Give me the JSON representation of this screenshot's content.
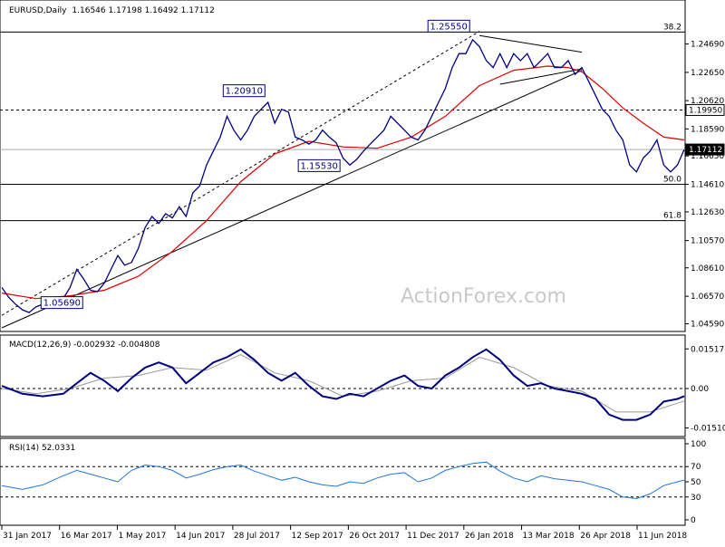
{
  "chart_data": {
    "type": "line",
    "watermark": "ActionForex.com",
    "price_panel": {
      "symbol": "EURUSD,Daily",
      "ohlc_text": "1.16546 1.17198 1.16492 1.17112",
      "ylim": [
        1.043,
        1.272
      ],
      "y_ticks": [
        "1.24690",
        "1.22650",
        "1.20620",
        "1.18590",
        "1.16650",
        "1.14610",
        "1.12630",
        "1.10570",
        "1.08610",
        "1.06570",
        "1.04590"
      ],
      "horizontal_lines": [
        {
          "value": 1.2555,
          "style": "solid",
          "label": "38.2"
        },
        {
          "value": 1.1995,
          "style": "dashed",
          "label": ""
        },
        {
          "value": 1.1711,
          "style": "solid-grey",
          "label": ""
        },
        {
          "value": 1.1461,
          "style": "solid",
          "label": "50.0"
        },
        {
          "value": 1.12,
          "style": "solid",
          "label": "61.8"
        }
      ],
      "level_boxes": [
        "1.19950",
        "1.17112"
      ],
      "annotations": [
        {
          "text": "1.25550",
          "x": 0.655,
          "y": 1.2555
        },
        {
          "text": "1.20910",
          "x": 0.355,
          "y": 1.2091
        },
        {
          "text": "1.15530",
          "x": 0.465,
          "y": 1.1553
        },
        {
          "text": "1.05690",
          "x": 0.088,
          "y": 1.0569
        }
      ],
      "close_series": [
        [
          0.0,
          1.072
        ],
        [
          0.01,
          1.065
        ],
        [
          0.02,
          1.06
        ],
        [
          0.03,
          1.056
        ],
        [
          0.04,
          1.054
        ],
        [
          0.05,
          1.058
        ],
        [
          0.06,
          1.06
        ],
        [
          0.07,
          1.062
        ],
        [
          0.08,
          1.058
        ],
        [
          0.09,
          1.064
        ],
        [
          0.1,
          1.072
        ],
        [
          0.11,
          1.085
        ],
        [
          0.12,
          1.078
        ],
        [
          0.13,
          1.07
        ],
        [
          0.14,
          1.069
        ],
        [
          0.15,
          1.075
        ],
        [
          0.16,
          1.085
        ],
        [
          0.17,
          1.095
        ],
        [
          0.18,
          1.088
        ],
        [
          0.19,
          1.09
        ],
        [
          0.2,
          1.1
        ],
        [
          0.21,
          1.115
        ],
        [
          0.22,
          1.123
        ],
        [
          0.23,
          1.118
        ],
        [
          0.24,
          1.125
        ],
        [
          0.25,
          1.122
        ],
        [
          0.26,
          1.13
        ],
        [
          0.27,
          1.123
        ],
        [
          0.28,
          1.14
        ],
        [
          0.29,
          1.145
        ],
        [
          0.3,
          1.16
        ],
        [
          0.31,
          1.17
        ],
        [
          0.32,
          1.18
        ],
        [
          0.33,
          1.195
        ],
        [
          0.34,
          1.185
        ],
        [
          0.35,
          1.178
        ],
        [
          0.36,
          1.185
        ],
        [
          0.37,
          1.195
        ],
        [
          0.38,
          1.2
        ],
        [
          0.39,
          1.205
        ],
        [
          0.4,
          1.19
        ],
        [
          0.41,
          1.2
        ],
        [
          0.42,
          1.198
        ],
        [
          0.43,
          1.18
        ],
        [
          0.44,
          1.178
        ],
        [
          0.45,
          1.175
        ],
        [
          0.46,
          1.178
        ],
        [
          0.47,
          1.185
        ],
        [
          0.48,
          1.18
        ],
        [
          0.49,
          1.176
        ],
        [
          0.5,
          1.165
        ],
        [
          0.51,
          1.16
        ],
        [
          0.52,
          1.164
        ],
        [
          0.53,
          1.17
        ],
        [
          0.54,
          1.175
        ],
        [
          0.55,
          1.18
        ],
        [
          0.56,
          1.185
        ],
        [
          0.57,
          1.195
        ],
        [
          0.58,
          1.19
        ],
        [
          0.59,
          1.185
        ],
        [
          0.6,
          1.18
        ],
        [
          0.61,
          1.178
        ],
        [
          0.62,
          1.185
        ],
        [
          0.63,
          1.195
        ],
        [
          0.64,
          1.205
        ],
        [
          0.65,
          1.215
        ],
        [
          0.66,
          1.23
        ],
        [
          0.67,
          1.24
        ],
        [
          0.68,
          1.24
        ],
        [
          0.69,
          1.25
        ],
        [
          0.7,
          1.245
        ],
        [
          0.71,
          1.235
        ],
        [
          0.72,
          1.23
        ],
        [
          0.73,
          1.24
        ],
        [
          0.74,
          1.23
        ],
        [
          0.75,
          1.24
        ],
        [
          0.76,
          1.235
        ],
        [
          0.77,
          1.24
        ],
        [
          0.78,
          1.23
        ],
        [
          0.79,
          1.235
        ],
        [
          0.8,
          1.24
        ],
        [
          0.81,
          1.23
        ],
        [
          0.82,
          1.23
        ],
        [
          0.83,
          1.235
        ],
        [
          0.84,
          1.225
        ],
        [
          0.85,
          1.23
        ],
        [
          0.86,
          1.22
        ],
        [
          0.87,
          1.21
        ],
        [
          0.88,
          1.2
        ],
        [
          0.89,
          1.195
        ],
        [
          0.9,
          1.185
        ],
        [
          0.91,
          1.178
        ],
        [
          0.92,
          1.16
        ],
        [
          0.93,
          1.155
        ],
        [
          0.94,
          1.165
        ],
        [
          0.95,
          1.17
        ],
        [
          0.96,
          1.178
        ],
        [
          0.97,
          1.16
        ],
        [
          0.98,
          1.155
        ],
        [
          0.99,
          1.16
        ],
        [
          1.0,
          1.1711
        ]
      ],
      "ma_series": [
        [
          0.0,
          1.068
        ],
        [
          0.05,
          1.064
        ],
        [
          0.1,
          1.066
        ],
        [
          0.15,
          1.07
        ],
        [
          0.2,
          1.08
        ],
        [
          0.25,
          1.098
        ],
        [
          0.3,
          1.12
        ],
        [
          0.35,
          1.148
        ],
        [
          0.4,
          1.168
        ],
        [
          0.45,
          1.177
        ],
        [
          0.5,
          1.173
        ],
        [
          0.55,
          1.172
        ],
        [
          0.6,
          1.18
        ],
        [
          0.65,
          1.195
        ],
        [
          0.7,
          1.217
        ],
        [
          0.75,
          1.228
        ],
        [
          0.8,
          1.231
        ],
        [
          0.83,
          1.23
        ],
        [
          0.85,
          1.227
        ],
        [
          0.88,
          1.215
        ],
        [
          0.91,
          1.201
        ],
        [
          0.94,
          1.19
        ],
        [
          0.97,
          1.18
        ],
        [
          1.0,
          1.178
        ]
      ],
      "trendlines": [
        {
          "from": [
            0.0,
            1.043
          ],
          "to": [
            0.85,
            1.228
          ],
          "style": "solid"
        },
        {
          "from": [
            0.0,
            1.052
          ],
          "to": [
            0.7,
            1.256
          ],
          "style": "dashed"
        },
        {
          "from": [
            0.7,
            1.253
          ],
          "to": [
            0.85,
            1.241
          ],
          "style": "solid"
        },
        {
          "from": [
            0.73,
            1.218
          ],
          "to": [
            0.85,
            1.229
          ],
          "style": "solid"
        }
      ]
    },
    "macd_panel": {
      "label": "MACD(12,26,9) -0.002932 -0.004808",
      "ylim": [
        -0.017,
        0.017
      ],
      "y_ticks": [
        "0.015176",
        "0.00",
        "-0.015109"
      ],
      "macd_series": [
        [
          0.0,
          0.001
        ],
        [
          0.03,
          -0.002
        ],
        [
          0.06,
          -0.003
        ],
        [
          0.09,
          -0.002
        ],
        [
          0.11,
          0.002
        ],
        [
          0.13,
          0.006
        ],
        [
          0.15,
          0.003
        ],
        [
          0.17,
          -0.001
        ],
        [
          0.19,
          0.004
        ],
        [
          0.21,
          0.008
        ],
        [
          0.23,
          0.01
        ],
        [
          0.25,
          0.008
        ],
        [
          0.27,
          0.002
        ],
        [
          0.29,
          0.006
        ],
        [
          0.31,
          0.01
        ],
        [
          0.33,
          0.012
        ],
        [
          0.35,
          0.015
        ],
        [
          0.37,
          0.011
        ],
        [
          0.39,
          0.006
        ],
        [
          0.41,
          0.003
        ],
        [
          0.43,
          0.006
        ],
        [
          0.45,
          0.001
        ],
        [
          0.47,
          -0.003
        ],
        [
          0.49,
          -0.004
        ],
        [
          0.51,
          -0.002
        ],
        [
          0.53,
          -0.003
        ],
        [
          0.55,
          0.0
        ],
        [
          0.57,
          0.003
        ],
        [
          0.59,
          0.005
        ],
        [
          0.61,
          0.001
        ],
        [
          0.63,
          0.0
        ],
        [
          0.65,
          0.005
        ],
        [
          0.67,
          0.008
        ],
        [
          0.69,
          0.012
        ],
        [
          0.71,
          0.015
        ],
        [
          0.73,
          0.011
        ],
        [
          0.75,
          0.005
        ],
        [
          0.77,
          0.001
        ],
        [
          0.79,
          0.002
        ],
        [
          0.81,
          0.0
        ],
        [
          0.83,
          -0.001
        ],
        [
          0.85,
          -0.002
        ],
        [
          0.87,
          -0.004
        ],
        [
          0.89,
          -0.01
        ],
        [
          0.91,
          -0.012
        ],
        [
          0.93,
          -0.012
        ],
        [
          0.95,
          -0.01
        ],
        [
          0.97,
          -0.005
        ],
        [
          0.99,
          -0.004
        ],
        [
          1.0,
          -0.0029
        ]
      ],
      "signal_series": [
        [
          0.0,
          0.0
        ],
        [
          0.05,
          -0.002
        ],
        [
          0.1,
          0.0
        ],
        [
          0.15,
          0.004
        ],
        [
          0.2,
          0.005
        ],
        [
          0.25,
          0.008
        ],
        [
          0.3,
          0.007
        ],
        [
          0.35,
          0.013
        ],
        [
          0.4,
          0.006
        ],
        [
          0.45,
          0.003
        ],
        [
          0.5,
          -0.003
        ],
        [
          0.55,
          -0.001
        ],
        [
          0.6,
          0.003
        ],
        [
          0.65,
          0.004
        ],
        [
          0.7,
          0.012
        ],
        [
          0.75,
          0.008
        ],
        [
          0.8,
          0.001
        ],
        [
          0.85,
          -0.001
        ],
        [
          0.9,
          -0.009
        ],
        [
          0.95,
          -0.009
        ],
        [
          1.0,
          -0.0048
        ]
      ]
    },
    "rsi_panel": {
      "label": "RSI(14) 52.0331",
      "ylim": [
        0,
        100
      ],
      "y_ticks": [
        "100",
        "70",
        "50",
        "30",
        "0"
      ],
      "rsi_series": [
        [
          0.0,
          45
        ],
        [
          0.03,
          40
        ],
        [
          0.06,
          46
        ],
        [
          0.09,
          58
        ],
        [
          0.11,
          65
        ],
        [
          0.13,
          60
        ],
        [
          0.15,
          55
        ],
        [
          0.17,
          50
        ],
        [
          0.19,
          65
        ],
        [
          0.21,
          72
        ],
        [
          0.23,
          70
        ],
        [
          0.25,
          65
        ],
        [
          0.27,
          55
        ],
        [
          0.29,
          60
        ],
        [
          0.31,
          66
        ],
        [
          0.33,
          70
        ],
        [
          0.35,
          72
        ],
        [
          0.37,
          64
        ],
        [
          0.39,
          58
        ],
        [
          0.41,
          52
        ],
        [
          0.43,
          56
        ],
        [
          0.45,
          50
        ],
        [
          0.47,
          46
        ],
        [
          0.49,
          44
        ],
        [
          0.51,
          50
        ],
        [
          0.53,
          48
        ],
        [
          0.55,
          55
        ],
        [
          0.57,
          60
        ],
        [
          0.59,
          62
        ],
        [
          0.61,
          50
        ],
        [
          0.63,
          55
        ],
        [
          0.65,
          65
        ],
        [
          0.67,
          70
        ],
        [
          0.69,
          74
        ],
        [
          0.71,
          76
        ],
        [
          0.73,
          64
        ],
        [
          0.75,
          55
        ],
        [
          0.77,
          50
        ],
        [
          0.79,
          58
        ],
        [
          0.81,
          54
        ],
        [
          0.83,
          52
        ],
        [
          0.85,
          50
        ],
        [
          0.87,
          45
        ],
        [
          0.89,
          40
        ],
        [
          0.91,
          30
        ],
        [
          0.93,
          28
        ],
        [
          0.95,
          34
        ],
        [
          0.97,
          45
        ],
        [
          0.99,
          50
        ],
        [
          1.0,
          52
        ]
      ]
    },
    "x_ticks": [
      "31 Jan 2017",
      "16 Mar 2017",
      "1 May 2017",
      "14 Jun 2017",
      "28 Jul 2017",
      "12 Sep 2017",
      "26 Oct 2017",
      "11 Dec 2017",
      "26 Jan 2018",
      "13 Mar 2018",
      "26 Apr 2018",
      "11 Jun 2018"
    ],
    "colors": {
      "price": "#000080",
      "ma": "#dd0000",
      "macd": "#000080",
      "signal": "#999999",
      "rsi": "#1f77d4",
      "levels": "#000000"
    }
  }
}
